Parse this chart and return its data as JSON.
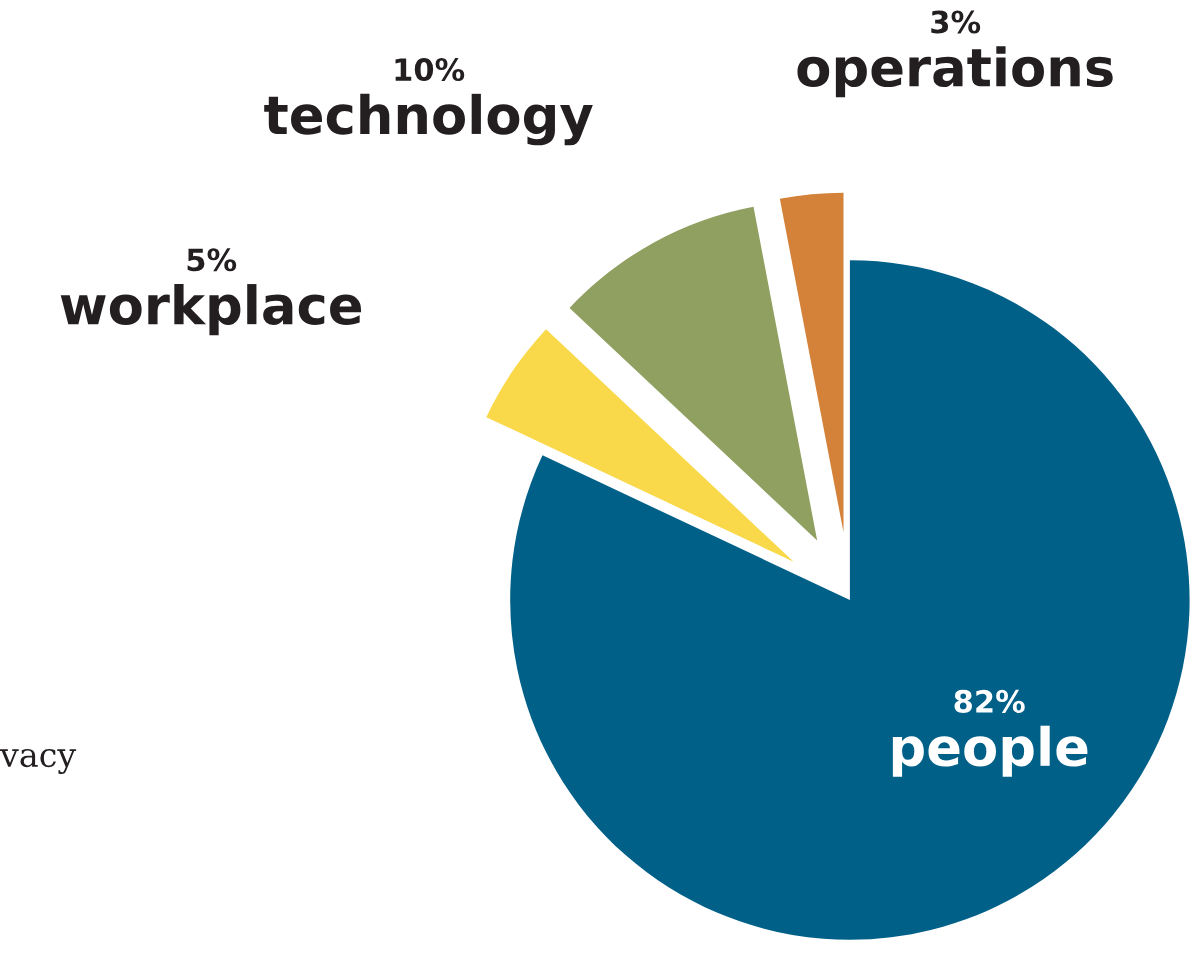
{
  "chart_data": {
    "type": "pie",
    "categories": [
      "people",
      "workplace",
      "technology",
      "operations"
    ],
    "values": [
      82,
      5,
      10,
      3
    ],
    "value_labels": [
      "82%",
      "5%",
      "10%",
      "3%"
    ],
    "colors": [
      "#006088",
      "#f9d84a",
      "#8fa060",
      "#d4823a"
    ],
    "annotations": [
      "vacy"
    ]
  }
}
